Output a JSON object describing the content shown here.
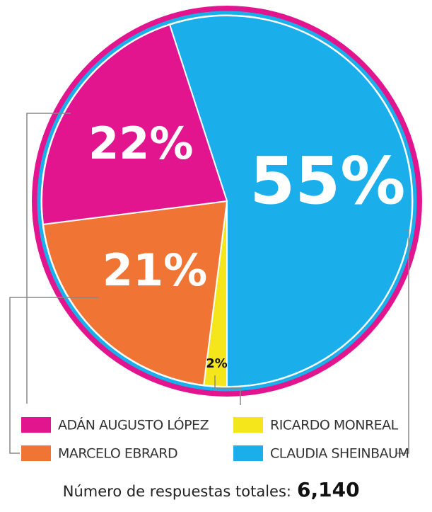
{
  "chart_data": {
    "type": "pie",
    "categories": [
      "CLAUDIA SHEINBAUM",
      "RICARDO MONREAL",
      "MARCELO EBRARD",
      "ADÁN AUGUSTO LÓPEZ"
    ],
    "values": [
      55,
      2,
      21,
      22
    ],
    "value_labels": [
      "55%",
      "2%",
      "21%",
      "22%"
    ],
    "colors": [
      "#1aaeea",
      "#f5e61c",
      "#f07535",
      "#e2158f"
    ],
    "footer": {
      "text": "Número de respuestas totales:",
      "total": "6,140"
    }
  }
}
